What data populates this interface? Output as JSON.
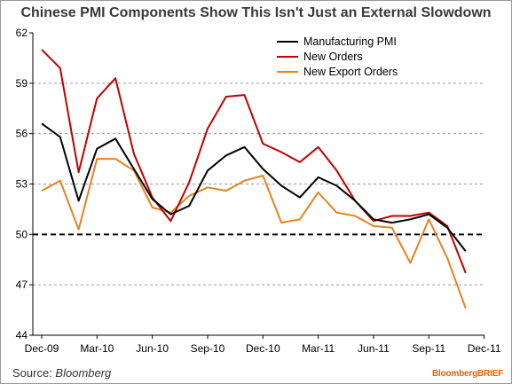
{
  "chart_data": {
    "type": "line",
    "title": "Chinese PMI Components Show This Isn't Just an External Slowdown",
    "xlabel": "",
    "ylabel": "",
    "ylim": [
      44,
      62
    ],
    "yticks": [
      44,
      47,
      50,
      53,
      56,
      59,
      62
    ],
    "xticks": [
      "Dec-09",
      "Mar-10",
      "Jun-10",
      "Sep-10",
      "Dec-10",
      "Mar-11",
      "Jun-11",
      "Sep-11",
      "Dec-11"
    ],
    "x": [
      "Dec-09",
      "Jan-10",
      "Feb-10",
      "Mar-10",
      "Apr-10",
      "May-10",
      "Jun-10",
      "Jul-10",
      "Aug-10",
      "Sep-10",
      "Oct-10",
      "Nov-10",
      "Dec-10",
      "Jan-11",
      "Feb-11",
      "Mar-11",
      "Apr-11",
      "May-11",
      "Jun-11",
      "Jul-11",
      "Aug-11",
      "Sep-11",
      "Oct-11",
      "Nov-11"
    ],
    "grid": "horizontal dashed",
    "reference_line": 50,
    "legend_position": "top-right",
    "series": [
      {
        "name": "Manufacturing PMI",
        "color": "#000000",
        "values": [
          56.6,
          55.8,
          52.0,
          55.1,
          55.7,
          53.9,
          52.1,
          51.2,
          51.7,
          53.8,
          54.7,
          55.2,
          53.9,
          52.9,
          52.2,
          53.4,
          52.9,
          52.0,
          50.9,
          50.7,
          50.9,
          51.2,
          50.4,
          49.0
        ]
      },
      {
        "name": "New Orders",
        "color": "#c00000",
        "values": [
          61.0,
          59.9,
          53.7,
          58.1,
          59.3,
          54.8,
          52.2,
          50.8,
          53.1,
          56.3,
          58.2,
          58.3,
          55.4,
          54.9,
          54.3,
          55.2,
          53.8,
          52.0,
          50.8,
          51.1,
          51.1,
          51.3,
          50.5,
          47.7
        ]
      },
      {
        "name": "New Export Orders",
        "color": "#e8821e",
        "values": [
          52.6,
          53.2,
          50.3,
          54.5,
          54.5,
          53.8,
          51.6,
          51.3,
          52.3,
          52.8,
          52.6,
          53.2,
          53.5,
          50.7,
          50.9,
          52.5,
          51.3,
          51.1,
          50.5,
          50.4,
          48.3,
          50.9,
          48.6,
          45.6
        ]
      }
    ]
  },
  "source_label": "Source: ",
  "source_name": "Bloomberg",
  "brand": "BloombergBRIEF"
}
